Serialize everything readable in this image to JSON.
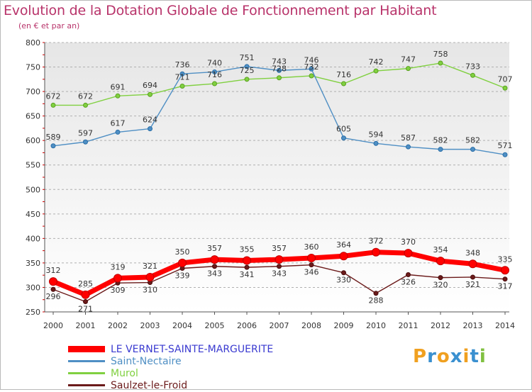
{
  "chart_data": {
    "type": "line",
    "title": "Evolution de la Dotation Globale de Fonctionnement par Habitant",
    "subtitle": "(en € et par an)",
    "xlabel": "",
    "ylabel": "",
    "ylim": [
      250,
      800
    ],
    "yticks": [
      250,
      300,
      350,
      400,
      450,
      500,
      550,
      600,
      650,
      700,
      750,
      800
    ],
    "grid": "dashed-horizontal",
    "categories": [
      "2000",
      "2001",
      "2002",
      "2003",
      "2004",
      "2005",
      "2006",
      "2007",
      "2008",
      "2009",
      "2010",
      "2011",
      "2012",
      "2013",
      "2014"
    ],
    "series": [
      {
        "name": "LE VERNET-SAINTE-MARGUERITE",
        "color": "#ff0000",
        "values": [
          312,
          285,
          319,
          321,
          350,
          357,
          355,
          357,
          360,
          364,
          372,
          370,
          354,
          348,
          335
        ]
      },
      {
        "name": "Saint-Nectaire",
        "color": "#4f8fc4",
        "values": [
          589,
          597,
          617,
          624,
          736,
          740,
          751,
          743,
          746,
          605,
          594,
          587,
          582,
          582,
          571
        ]
      },
      {
        "name": "Murol",
        "color": "#80d040",
        "values": [
          672,
          672,
          691,
          694,
          711,
          716,
          725,
          728,
          732,
          716,
          742,
          747,
          758,
          733,
          707
        ]
      },
      {
        "name": "Saulzet-le-Froid",
        "color": "#6b1a1a",
        "values": [
          296,
          271,
          309,
          310,
          339,
          343,
          341,
          343,
          346,
          330,
          288,
          326,
          320,
          321,
          317
        ]
      }
    ],
    "legend_position": "bottom-left"
  },
  "branding": {
    "logo_letters": [
      "P",
      "r",
      "o",
      "x",
      "i",
      "t",
      "i"
    ],
    "logo_colors": [
      "#f0a020",
      "#3a90d0",
      "#f0a020",
      "#3a90d0",
      "#f0a020",
      "#3a90d0",
      "#80c040"
    ]
  },
  "colors": {
    "title": "#b8336a",
    "axis": "#555555",
    "grid": "#b0b0b0",
    "plot_bg_top": "#e8e8e8",
    "plot_bg_bottom": "#ffffff"
  }
}
